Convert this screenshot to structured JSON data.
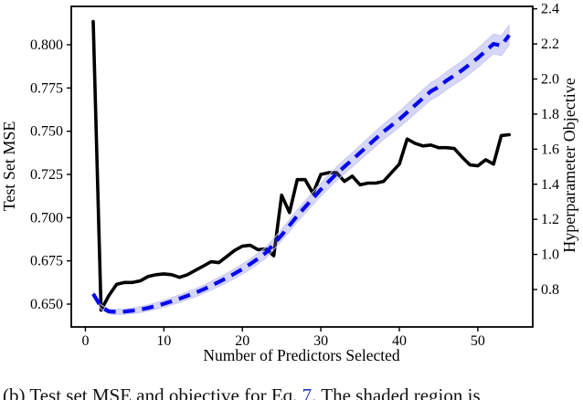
{
  "figure": {
    "title": "",
    "x_axis": {
      "label": "Number of Predictors Selected",
      "tick_values": [
        0,
        10,
        20,
        30,
        40,
        50
      ],
      "tick_labels": [
        "0",
        "10",
        "20",
        "30",
        "40",
        "50"
      ]
    },
    "left_axis": {
      "label": "Test Set MSE",
      "tick_values": [
        0.65,
        0.675,
        0.7,
        0.725,
        0.75,
        0.775,
        0.8
      ],
      "tick_labels": [
        "0.650",
        "0.675",
        "0.700",
        "0.725",
        "0.750",
        "0.775",
        "0.800"
      ],
      "tick_color": "#000000"
    },
    "right_axis": {
      "label": "Hyperparameter Objective",
      "tick_values": [
        0.8,
        1.0,
        1.2,
        1.4,
        1.6,
        1.8,
        2.0,
        2.2,
        2.4
      ],
      "tick_labels": [
        "0.8",
        "1.0",
        "1.2",
        "1.4",
        "1.6",
        "1.8",
        "2.0",
        "2.2",
        "2.4"
      ],
      "tick_color": "#0000dd"
    },
    "spine_color": "#000000"
  },
  "chart_data": {
    "type": "line",
    "title": "",
    "xlabel": "Number of Predictors Selected",
    "ylabel_left": "Test Set MSE",
    "ylabel_right": "Hyperparameter Objective",
    "xlim": [
      -1.8,
      57
    ],
    "left_ylim": [
      0.6368,
      0.8222
    ],
    "right_ylim": [
      0.5865,
      2.414
    ],
    "grid": false,
    "legend": "none",
    "x": [
      1,
      2,
      3,
      4,
      5,
      6,
      7,
      8,
      9,
      10,
      11,
      12,
      13,
      14,
      15,
      16,
      17,
      18,
      19,
      20,
      21,
      22,
      23,
      24,
      25,
      26,
      27,
      28,
      29,
      30,
      31,
      32,
      33,
      34,
      35,
      36,
      37,
      38,
      39,
      40,
      41,
      42,
      43,
      44,
      45,
      46,
      47,
      48,
      49,
      50,
      51,
      52,
      53,
      54
    ],
    "series": [
      {
        "name": "Test Set MSE",
        "axis": "left",
        "style": "solid",
        "color": "#000000",
        "linewidth": 3.6,
        "values": [
          0.8135,
          0.6465,
          0.655,
          0.6615,
          0.6625,
          0.6625,
          0.6635,
          0.666,
          0.667,
          0.6675,
          0.667,
          0.6655,
          0.667,
          0.6695,
          0.672,
          0.6745,
          0.674,
          0.6775,
          0.681,
          0.6835,
          0.684,
          0.6815,
          0.682,
          0.678,
          0.713,
          0.703,
          0.722,
          0.722,
          0.714,
          0.725,
          0.726,
          0.726,
          0.721,
          0.724,
          0.719,
          0.72,
          0.72,
          0.721,
          0.726,
          0.731,
          0.7455,
          0.743,
          0.7415,
          0.742,
          0.7405,
          0.7405,
          0.74,
          0.735,
          0.7305,
          0.73,
          0.7335,
          0.731,
          0.7475,
          0.748
        ]
      },
      {
        "name": "Hyperparameter Objective",
        "axis": "right",
        "style": "dashed",
        "color": "#0707ee",
        "linewidth": 4.2,
        "values": [
          0.775,
          0.7,
          0.675,
          0.672,
          0.674,
          0.679,
          0.686,
          0.695,
          0.706,
          0.719,
          0.733,
          0.748,
          0.764,
          0.781,
          0.8,
          0.821,
          0.843,
          0.866,
          0.89,
          0.916,
          0.945,
          0.976,
          1.01,
          1.06,
          1.11,
          1.165,
          1.22,
          1.27,
          1.32,
          1.37,
          1.415,
          1.46,
          1.5,
          1.54,
          1.58,
          1.62,
          1.66,
          1.7,
          1.735,
          1.77,
          1.81,
          1.85,
          1.89,
          1.93,
          1.955,
          1.99,
          2.02,
          2.05,
          2.085,
          2.12,
          2.16,
          2.2,
          2.19,
          2.25
        ],
        "band": {
          "halfwidth_start": 0.012,
          "halfwidth_end": 0.058,
          "color": "#6a6ae0",
          "opacity": 0.28
        }
      }
    ]
  },
  "caption": {
    "prefix": "(b) Test set MSE and objective for Eq. ",
    "ref": "7",
    "ref_color": "#2233bb",
    "suffix": ". The shaded region is"
  }
}
